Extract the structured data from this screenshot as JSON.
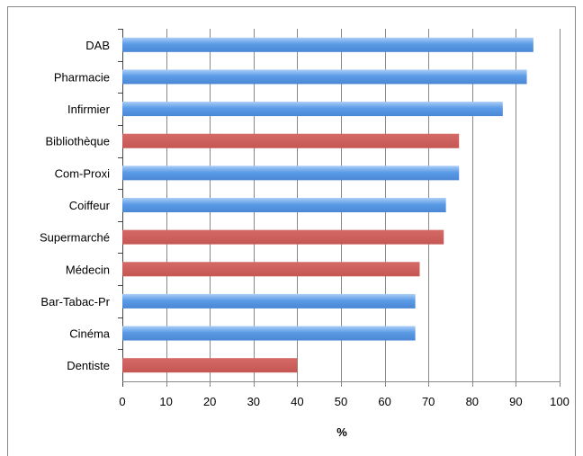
{
  "chart_data": {
    "type": "bar",
    "orientation": "horizontal",
    "title": "",
    "xlabel": "%",
    "ylabel": "",
    "xlim": [
      0,
      100
    ],
    "xticks": [
      0,
      10,
      20,
      30,
      40,
      50,
      60,
      70,
      80,
      90,
      100
    ],
    "grid": true,
    "legend": "none",
    "categories": [
      "DAB",
      "Pharmacie",
      "Infirmier",
      "Bibliothèque",
      "Com-Proxi",
      "Coiffeur",
      "Supermarché",
      "Médecin",
      "Bar-Tabac-Pr",
      "Cinéma",
      "Dentiste"
    ],
    "values": [
      94,
      92.5,
      87,
      77,
      77,
      74,
      73.5,
      68,
      67,
      67,
      40
    ],
    "bar_colors": [
      "#5a9be6",
      "#5a9be6",
      "#5a9be6",
      "#cd5f5c",
      "#5a9be6",
      "#5a9be6",
      "#cd5f5c",
      "#cd5f5c",
      "#5a9be6",
      "#5a9be6",
      "#cd5f5c"
    ]
  }
}
